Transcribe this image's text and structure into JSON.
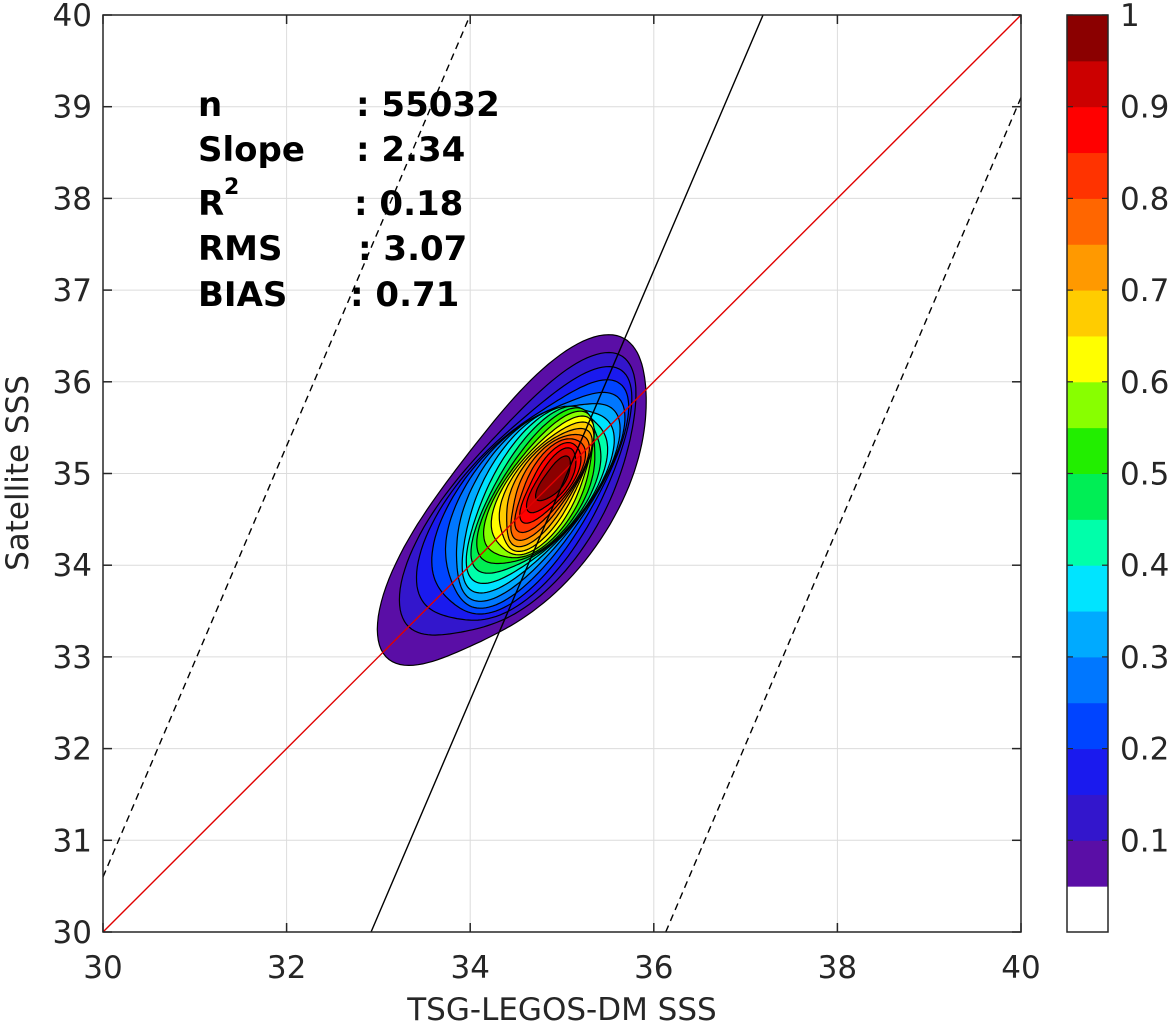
{
  "chart_data": {
    "type": "contour-density",
    "xlabel": "TSG-LEGOS-DM SSS",
    "ylabel": "Satellite SSS",
    "xlim": [
      30,
      40
    ],
    "ylim": [
      30,
      40
    ],
    "x_ticks": [
      "30",
      "32",
      "34",
      "36",
      "38",
      "40"
    ],
    "y_ticks": [
      "30",
      "31",
      "32",
      "33",
      "34",
      "35",
      "36",
      "37",
      "38",
      "39",
      "40"
    ],
    "grid": true,
    "stats": [
      {
        "label": "n",
        "value": ": 55032"
      },
      {
        "label": "Slope",
        "value": ": 2.34"
      },
      {
        "label": "R",
        "sup": "2",
        "value": ": 0.18"
      },
      {
        "label": "RMS",
        "value": ": 3.07"
      },
      {
        "label": "BIAS",
        "value": ": 0.71"
      }
    ],
    "reference_lines": [
      {
        "name": "one-to-one",
        "color": "#e00000",
        "dash": "solid",
        "points": [
          [
            30,
            30
          ],
          [
            40,
            40
          ]
        ]
      },
      {
        "name": "regression",
        "color": "#000000",
        "dash": "solid",
        "points": [
          [
            32.92,
            30
          ],
          [
            37.19,
            40
          ]
        ]
      },
      {
        "name": "upper-bound",
        "color": "#000000",
        "dash": "dashed",
        "points": [
          [
            30,
            30.6
          ],
          [
            34.0,
            40
          ]
        ]
      },
      {
        "name": "lower-bound",
        "color": "#000000",
        "dash": "dashed",
        "points": [
          [
            36.13,
            30
          ],
          [
            40,
            39.1
          ]
        ]
      }
    ],
    "density": {
      "center": [
        34.55,
        34.65
      ],
      "peak": [
        34.93,
        34.95
      ],
      "sigma_major": 0.85,
      "sigma_minor": 0.36,
      "rotation_deg": 55,
      "levels": [
        0.05,
        0.1,
        0.15,
        0.2,
        0.25,
        0.3,
        0.35,
        0.4,
        0.45,
        0.5,
        0.55,
        0.6,
        0.65,
        0.7,
        0.75,
        0.8,
        0.85,
        0.9,
        0.95
      ]
    },
    "colorbar": {
      "ticks": [
        "0.1",
        "0.2",
        "0.3",
        "0.4",
        "0.5",
        "0.6",
        "0.7",
        "0.8",
        "0.9",
        "1"
      ],
      "colors": [
        "#ffffff",
        "#5a0ea6",
        "#3316cc",
        "#1a1aee",
        "#0044ff",
        "#0077ff",
        "#00aaff",
        "#00e4ff",
        "#00ffaa",
        "#00ee55",
        "#22ee00",
        "#88ff00",
        "#ffff00",
        "#ffcc00",
        "#ff9900",
        "#ff6600",
        "#ff3300",
        "#ff0000",
        "#cc0000",
        "#8b0000"
      ]
    }
  }
}
